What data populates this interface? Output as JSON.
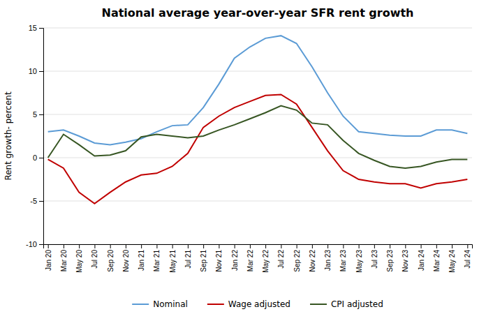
{
  "chart_data": {
    "type": "line",
    "title": "National  average year-over-year SFR rent growth",
    "y_label": "Rent growth- percent",
    "categories": [
      "Jan 20",
      "Mar 20",
      "May 20",
      "Jul 20",
      "Sep 20",
      "Nov 20",
      "Jan 21",
      "Mar 21",
      "May 21",
      "Jul 21",
      "Sep 21",
      "Nov 21",
      "Jan 22",
      "Mar 22",
      "May 22",
      "Jul 22",
      "Sep 22",
      "Nov 22",
      "Jan 23",
      "Mar 23",
      "May 23",
      "Jul 23",
      "Sep 23",
      "Nov 23",
      "Jan 24",
      "Mar 24",
      "May 24",
      "Jul 24"
    ],
    "series": [
      {
        "name": "Nominal",
        "color": "#5b9bd5",
        "values": [
          3.0,
          3.2,
          2.5,
          1.7,
          1.5,
          1.8,
          2.2,
          3.0,
          3.7,
          3.8,
          5.8,
          8.5,
          11.5,
          12.8,
          13.8,
          14.1,
          13.2,
          10.5,
          7.5,
          4.8,
          3.0,
          2.8,
          2.6,
          2.5,
          2.5,
          3.2,
          3.2,
          2.8
        ]
      },
      {
        "name": "Wage adjusted",
        "color": "#c00000",
        "values": [
          -0.2,
          -1.2,
          -4.0,
          -5.3,
          -4.0,
          -2.8,
          -2.0,
          -1.8,
          -1.0,
          0.5,
          3.5,
          4.8,
          5.8,
          6.5,
          7.2,
          7.3,
          6.2,
          3.5,
          0.8,
          -1.5,
          -2.5,
          -2.8,
          -3.0,
          -3.0,
          -3.5,
          -3.0,
          -2.8,
          -2.5
        ]
      },
      {
        "name": "CPI adjusted",
        "color": "#375623",
        "values": [
          0.0,
          2.7,
          1.5,
          0.2,
          0.3,
          0.8,
          2.4,
          2.7,
          2.5,
          2.3,
          2.5,
          3.2,
          3.8,
          4.5,
          5.2,
          6.0,
          5.5,
          4.0,
          3.8,
          2.0,
          0.5,
          -0.3,
          -1.0,
          -1.2,
          -1.0,
          -0.5,
          -0.2,
          -0.2
        ]
      }
    ],
    "ylim": [
      -10,
      15
    ],
    "yticks": [
      -10,
      -5,
      0,
      5,
      10,
      15
    ],
    "grid": true,
    "legend": "bottom"
  }
}
